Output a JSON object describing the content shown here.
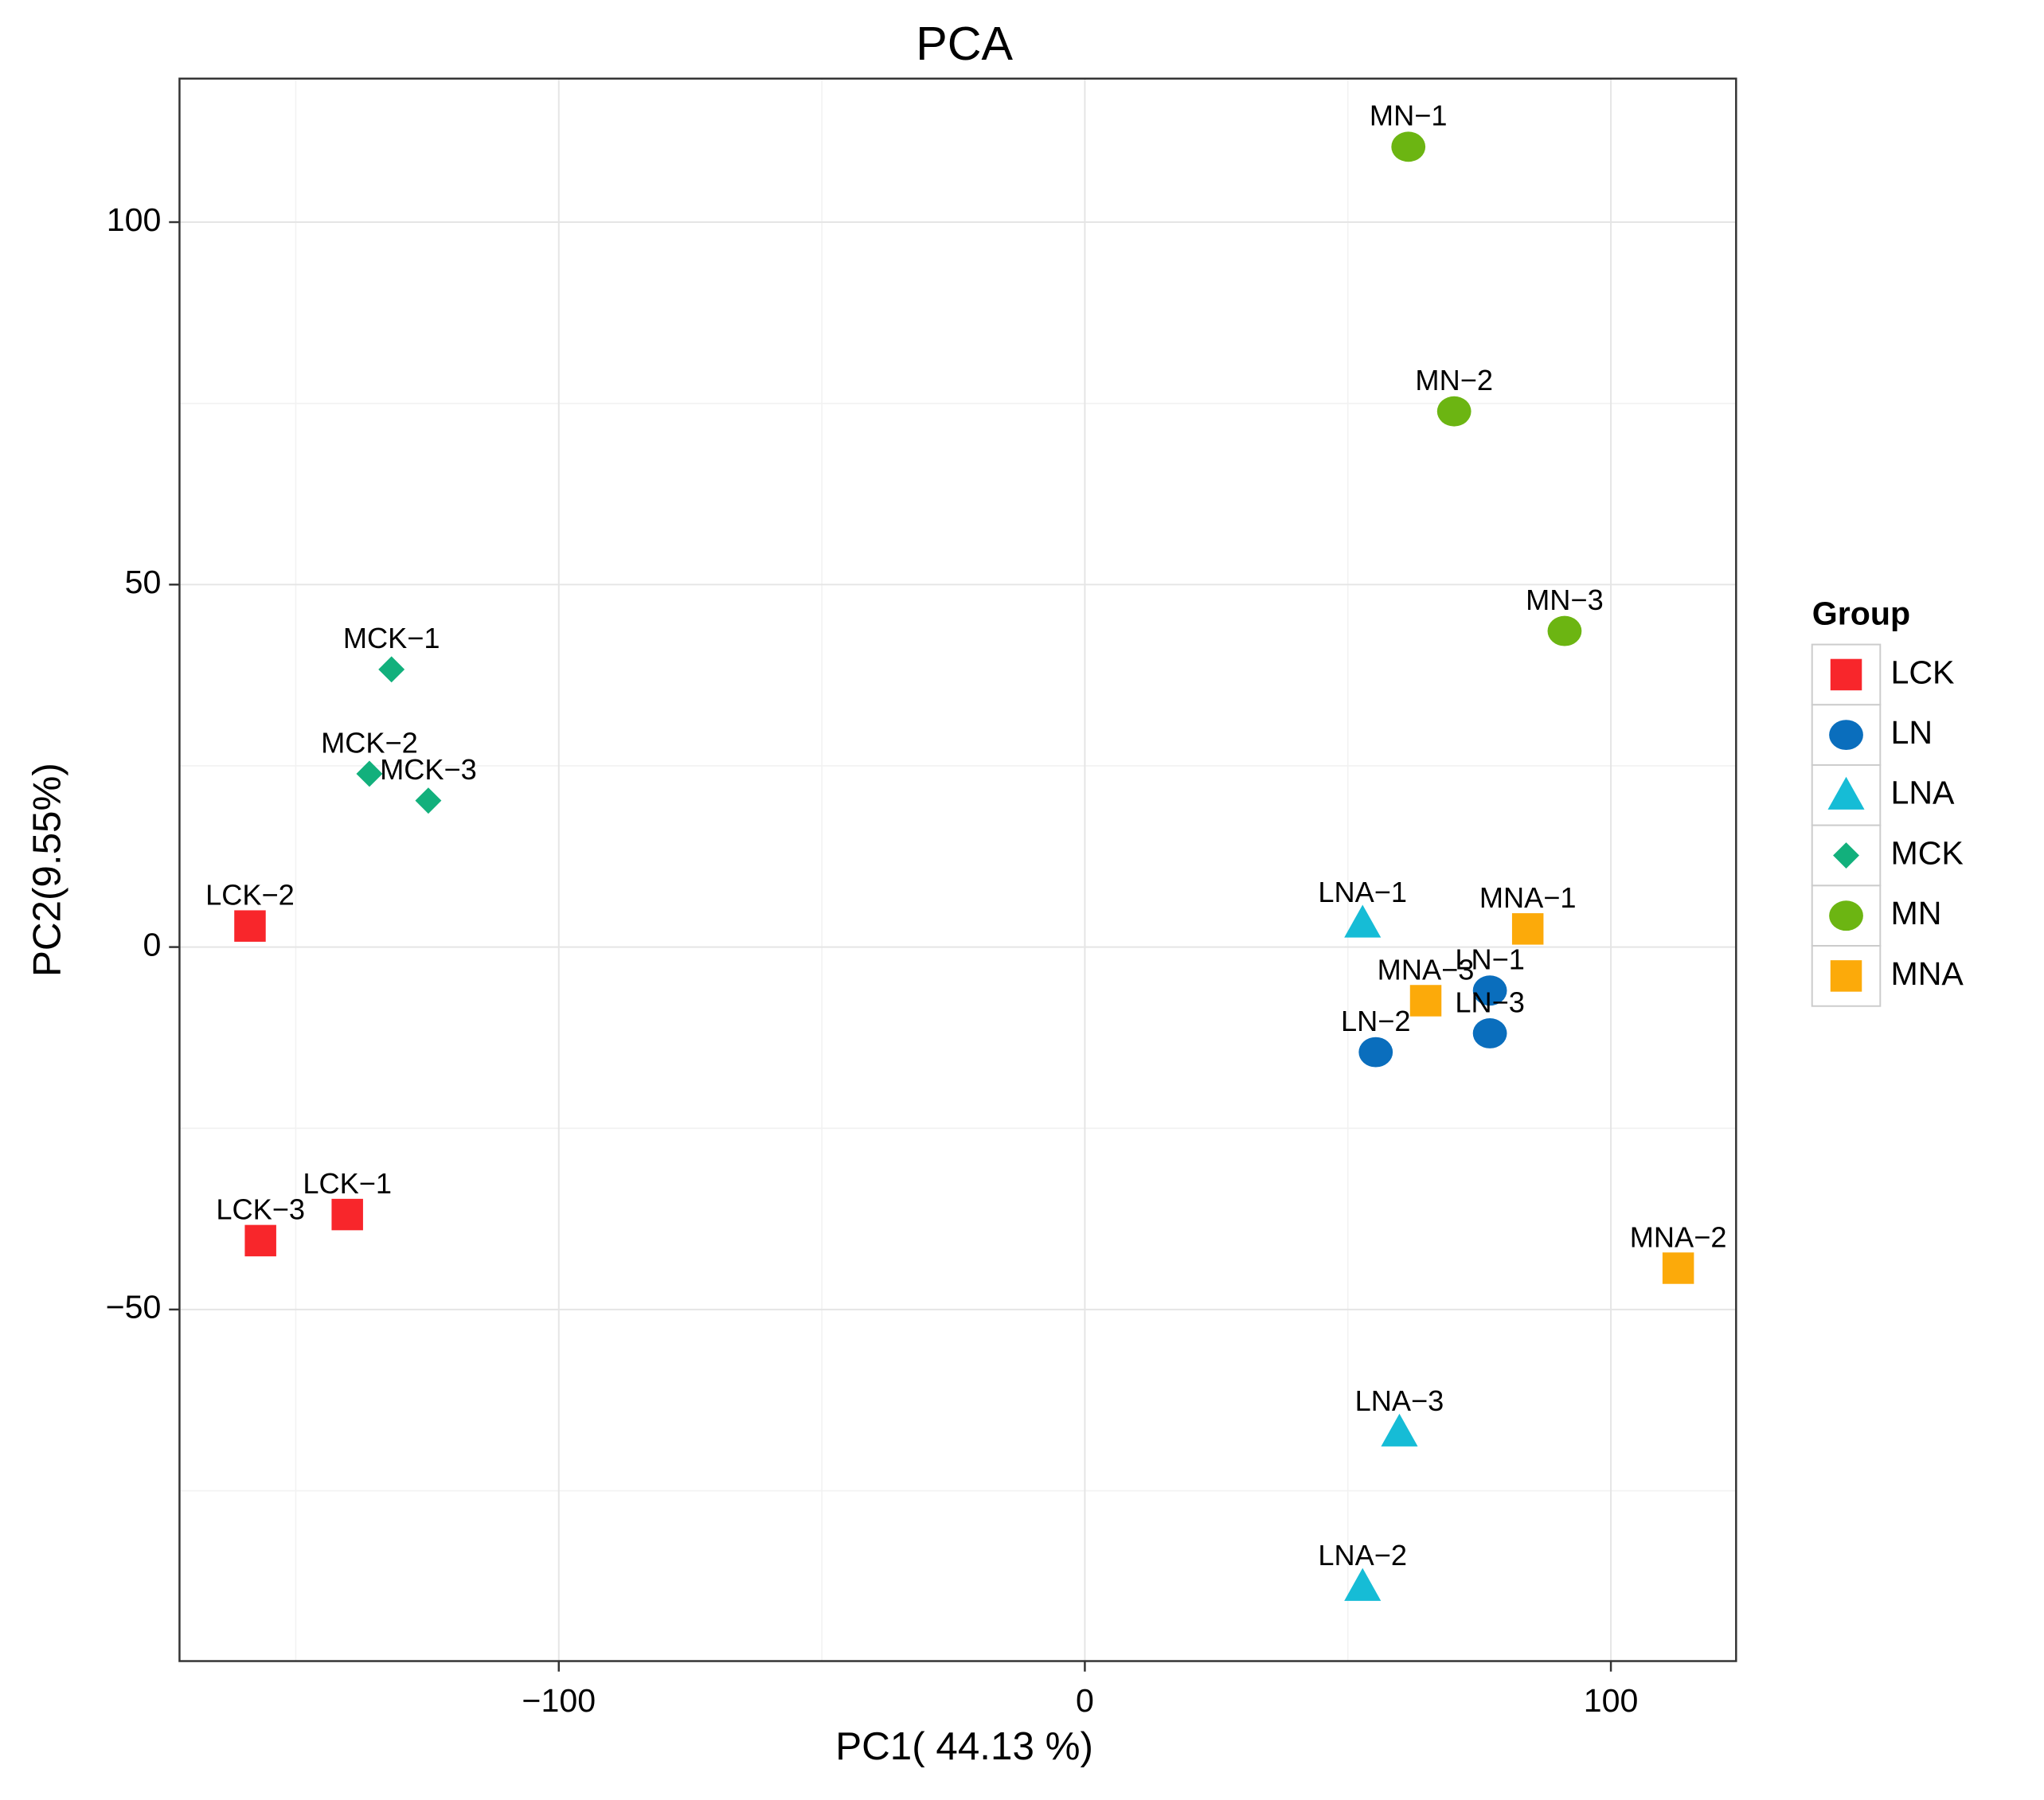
{
  "chart_data": {
    "type": "scatter",
    "title": "PCA",
    "x_label": "PC1( 44.13 %)",
    "y_label": "PC2(9.55%)",
    "xlim": [
      -172.1,
      123.8
    ],
    "ylim": [
      -98.5,
      119.8
    ],
    "xticks": [
      {
        "value": -100,
        "label": "−100"
      },
      0,
      100
    ],
    "yticks": [
      {
        "value": -50,
        "label": "−50"
      },
      0,
      50,
      100
    ],
    "xminorticks": [
      -150,
      -50,
      50
    ],
    "yminorticks": [
      -75,
      -25,
      25,
      75
    ],
    "grid": true,
    "legend_title": "Group",
    "legend_position": "right",
    "series": [
      {
        "name": "LCK",
        "color": "#f8262b",
        "marker": "square",
        "labels": [
          "LCK−1",
          "LCK−2",
          "LCK−3"
        ],
        "x": [
          -140.2,
          -158.7,
          -156.7
        ],
        "values": [
          -36.9,
          2.9,
          -40.5
        ]
      },
      {
        "name": "LN",
        "color": "#0a6ebd",
        "marker": "circle",
        "labels": [
          "LN−1",
          "LN−2",
          "LN−3"
        ],
        "x": [
          77.0,
          55.3,
          77.0
        ],
        "values": [
          -6.0,
          -14.5,
          -11.9
        ]
      },
      {
        "name": "LNA",
        "color": "#16bcd6",
        "marker": "triangle",
        "labels": [
          "LNA−1",
          "LNA−2",
          "LNA−3"
        ],
        "x": [
          52.8,
          52.8,
          59.8
        ],
        "values": [
          3.3,
          -88.2,
          -66.9
        ]
      },
      {
        "name": "MCK",
        "color": "#12b07c",
        "marker": "diamond",
        "labels": [
          "MCK−1",
          "MCK−2",
          "MCK−3"
        ],
        "x": [
          -131.8,
          -136.0,
          -124.8
        ],
        "values": [
          38.3,
          23.9,
          20.2
        ]
      },
      {
        "name": "MN",
        "color": "#6cb512",
        "marker": "circle",
        "labels": [
          "MN−1",
          "MN−2",
          "MN−3"
        ],
        "x": [
          61.5,
          70.2,
          91.2
        ],
        "values": [
          110.4,
          73.9,
          43.6
        ]
      },
      {
        "name": "MNA",
        "color": "#fcaa0a",
        "marker": "square",
        "labels": [
          "MNA−1",
          "MNA−2",
          "MNA−3"
        ],
        "x": [
          84.2,
          112.8,
          64.8
        ],
        "values": [
          2.5,
          -44.3,
          -7.4
        ]
      }
    ]
  }
}
